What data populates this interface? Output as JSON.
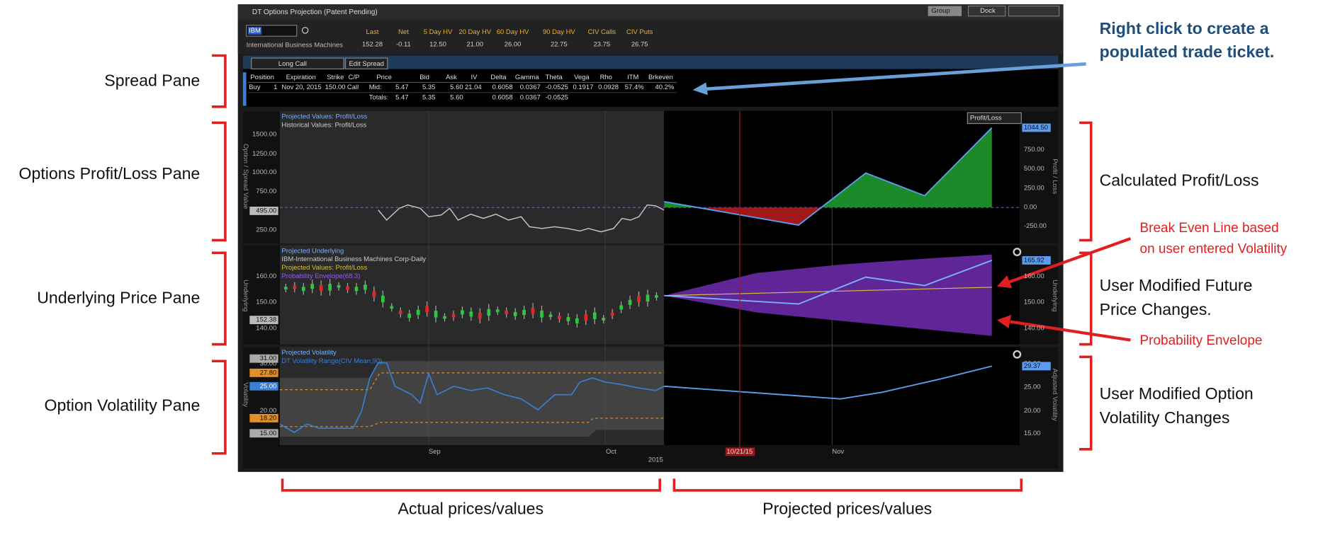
{
  "window": {
    "title": "DT Options Projection (Patent Pending)",
    "buttons": [
      "Group",
      "Dock"
    ]
  },
  "quote": {
    "symbol": "IBM",
    "name": "International Business Machines",
    "headers": [
      "Last",
      "Net",
      "5 Day HV",
      "20 Day HV",
      "60 Day HV",
      "90 Day HV",
      "CIV Calls",
      "CIV Puts"
    ],
    "values": [
      "152.28",
      "-0.11",
      "12.50",
      "21.00",
      "26.00",
      "22.75",
      "23.75",
      "26.75"
    ]
  },
  "spread": {
    "strategy": "Long Call",
    "edit": "Edit Spread",
    "headers": [
      "Position",
      "Expiration",
      "Strike",
      "C/P",
      "Price",
      "Bid",
      "Ask",
      "IV",
      "Delta",
      "Gamma",
      "Theta",
      "Vega",
      "Rho",
      "ITM",
      "Brkeven"
    ],
    "row": [
      "Buy",
      "1",
      "Nov 20, 2015",
      "150.00",
      "Call",
      "Mid:",
      "5.47",
      "5.35",
      "5.60",
      "21.04",
      "0.6058",
      "0.0367",
      "-0.0525",
      "0.1917",
      "0.0928",
      "57.4%",
      "40.2%"
    ],
    "totals": [
      "Totals:",
      "5.47",
      "5.35",
      "5.60",
      null,
      "0.6058",
      "0.0367",
      "-0.0525"
    ]
  },
  "pl_pane": {
    "legend": [
      "Projected Values: Profit/Loss",
      "Historical Values: Profit/Loss"
    ],
    "left_axis": "Option / Spread Value",
    "right_axis": "Profit / Loss",
    "dropdown": "Profit/Loss",
    "left_ticks": [
      "1500.00",
      "1250.00",
      "1000.00",
      "750.00",
      "250.00"
    ],
    "left_current": "495.00",
    "right_ticks": [
      "750.00",
      "500.00",
      "250.00",
      "0.00",
      "-250.00"
    ],
    "right_current": "1044.50"
  },
  "underlying_pane": {
    "legend": [
      "Projected Underlying",
      "IBM-International Business Machines Corp-Daily",
      "Projected Values: Profit/Loss",
      "Probability Envelope(68.3)"
    ],
    "left_axis": "Underlying",
    "right_axis": "Underlying",
    "left_ticks": [
      "160.00",
      "150.00",
      "140.00"
    ],
    "left_current": "152.38",
    "right_ticks": [
      "160.00",
      "150.00",
      "140.00"
    ],
    "right_current": "165.92"
  },
  "volatility_pane": {
    "legend": [
      "Projected Volatility",
      "DT Volatility Range(CIV Mean,90)"
    ],
    "left_axis": "Volatility",
    "right_axis": "Adjusted Volatility",
    "left_ticks": [
      "30.00",
      "25.00",
      "20.00"
    ],
    "left_markers": [
      "31.00",
      "27.80",
      "25.00",
      "18.20",
      "15.00"
    ],
    "right_ticks": [
      "30.00",
      "25.00",
      "20.00",
      "15.00"
    ],
    "right_current": "29.37"
  },
  "x_axis": {
    "months": [
      "Sep",
      "Oct",
      "Nov"
    ],
    "year": "2015",
    "cursor": "10/21/15"
  },
  "annotations": {
    "left": [
      "Spread Pane",
      "Options Profit/Loss Pane",
      "Underlying Price Pane",
      "Option Volatility Pane"
    ],
    "ticket": [
      "Right click to create a",
      "populated trade ticket."
    ],
    "calc": "Calculated Profit/Loss",
    "breakeven": [
      "Break Even Line based",
      "on user entered Volatility"
    ],
    "future": [
      "User Modified Future",
      "Price Changes."
    ],
    "envelope": "Probability Envelope",
    "vol": [
      "User Modified Option",
      "Volatility Changes"
    ],
    "bottom": [
      "Actual prices/values",
      "Projected prices/values"
    ]
  }
}
